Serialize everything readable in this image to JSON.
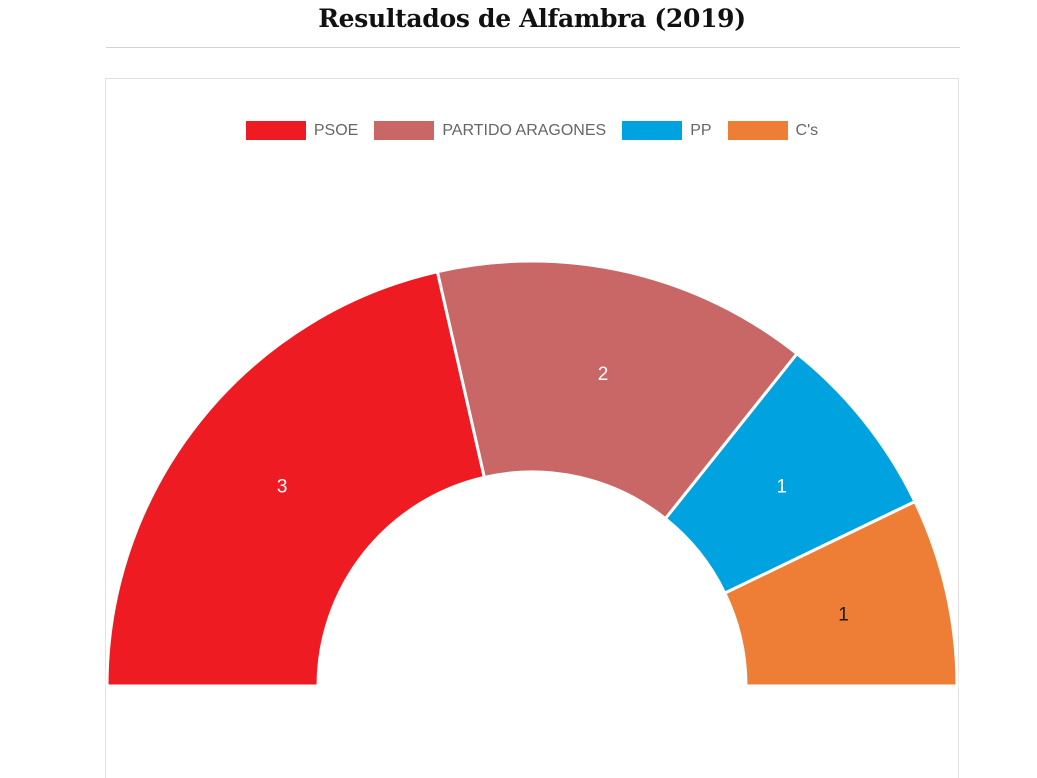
{
  "page": {
    "title": "Resultados de Alfambra (2019)"
  },
  "chart_data": {
    "type": "pie",
    "subtype": "half-donut",
    "title": "Resultados de Alfambra (2019)",
    "legend_position": "top",
    "categories": [
      "PSOE",
      "PARTIDO ARAGONES",
      "PP",
      "C's"
    ],
    "values": [
      3,
      2,
      1,
      1
    ],
    "colors": [
      "#ee1c22",
      "#c96666",
      "#00a3e0",
      "#ee7d35"
    ],
    "data_labels": [
      "3",
      "2",
      "1",
      "1"
    ]
  }
}
